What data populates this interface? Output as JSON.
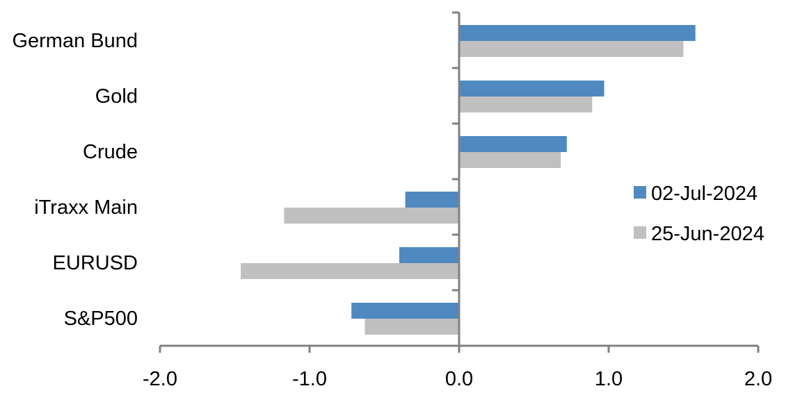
{
  "chart_data": {
    "type": "bar",
    "orientation": "horizontal",
    "categories": [
      "German Bund",
      "Gold",
      "Crude",
      "iTraxx Main",
      "EURUSD",
      "S&P500"
    ],
    "series": [
      {
        "name": "02-Jul-2024",
        "color": "#4f89bf",
        "values": [
          1.58,
          0.97,
          0.72,
          -0.36,
          -0.4,
          -0.72
        ]
      },
      {
        "name": "25-Jun-2024",
        "color": "#c0c0c0",
        "values": [
          1.5,
          0.89,
          0.68,
          -1.17,
          -1.46,
          -0.63
        ]
      }
    ],
    "xlim": [
      -2.0,
      2.0
    ],
    "xticks": [
      "-2.0",
      "-1.0",
      "0.0",
      "1.0",
      "2.0"
    ],
    "xtick_values": [
      -2,
      -1,
      0,
      1,
      2
    ],
    "title": "",
    "xlabel": "",
    "ylabel": "",
    "grid": false,
    "legend_placement": "right"
  }
}
